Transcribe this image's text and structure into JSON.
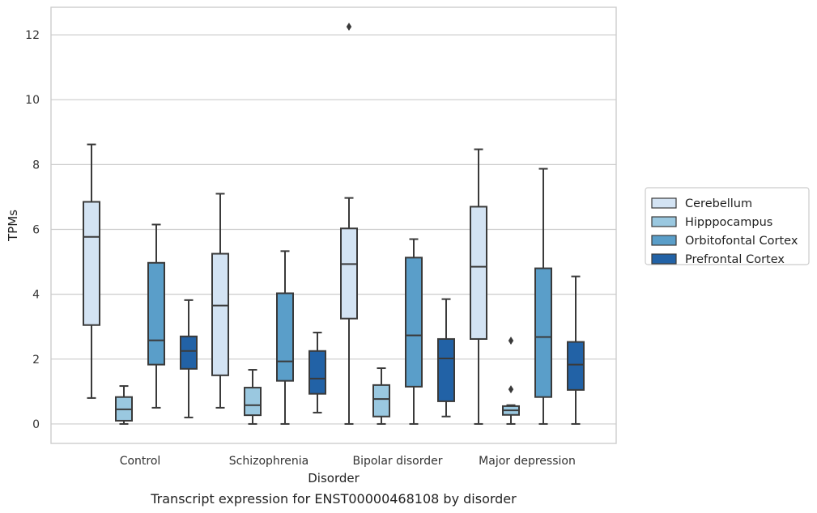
{
  "chart_data": {
    "type": "boxplot",
    "caption": "Transcript expression for ENST00000468108 by disorder",
    "xlabel": "Disorder",
    "ylabel": "TPMs",
    "ylim": [
      -0.6,
      12.85
    ],
    "yticks": [
      0,
      2,
      4,
      6,
      8,
      10,
      12
    ],
    "grid": "horizontal",
    "legend_position": "right",
    "categories": [
      "Control",
      "Schizophrenia",
      "Bipolar disorder",
      "Major depression"
    ],
    "series": [
      {
        "name": "Cerebellum",
        "color": "#d3e3f3",
        "boxes": [
          {
            "whislo": 0.8,
            "q1": 3.05,
            "med": 5.77,
            "q3": 6.85,
            "whishi": 8.62,
            "fliers": []
          },
          {
            "whislo": 0.5,
            "q1": 1.5,
            "med": 3.65,
            "q3": 5.25,
            "whishi": 7.1,
            "fliers": []
          },
          {
            "whislo": 0.0,
            "q1": 3.25,
            "med": 4.93,
            "q3": 6.03,
            "whishi": 6.97,
            "fliers": [
              12.25
            ]
          },
          {
            "whislo": 0.0,
            "q1": 2.62,
            "med": 4.85,
            "q3": 6.7,
            "whishi": 8.47,
            "fliers": []
          }
        ]
      },
      {
        "name": "Hipppocampus",
        "color": "#9ac8e0",
        "boxes": [
          {
            "whislo": 0.0,
            "q1": 0.1,
            "med": 0.45,
            "q3": 0.83,
            "whishi": 1.17,
            "fliers": []
          },
          {
            "whislo": 0.0,
            "q1": 0.27,
            "med": 0.58,
            "q3": 1.12,
            "whishi": 1.67,
            "fliers": []
          },
          {
            "whislo": 0.0,
            "q1": 0.23,
            "med": 0.77,
            "q3": 1.2,
            "whishi": 1.72,
            "fliers": []
          },
          {
            "whislo": 0.0,
            "q1": 0.28,
            "med": 0.42,
            "q3": 0.55,
            "whishi": 0.58,
            "fliers": [
              2.57,
              1.07
            ]
          }
        ]
      },
      {
        "name": "Orbitofontal Cortex",
        "color": "#5a9ec9",
        "boxes": [
          {
            "whislo": 0.5,
            "q1": 1.83,
            "med": 2.58,
            "q3": 4.97,
            "whishi": 6.15,
            "fliers": []
          },
          {
            "whislo": 0.0,
            "q1": 1.33,
            "med": 1.93,
            "q3": 4.03,
            "whishi": 5.33,
            "fliers": []
          },
          {
            "whislo": 0.0,
            "q1": 1.15,
            "med": 2.73,
            "q3": 5.13,
            "whishi": 5.7,
            "fliers": []
          },
          {
            "whislo": 0.0,
            "q1": 0.83,
            "med": 2.68,
            "q3": 4.8,
            "whishi": 7.87,
            "fliers": []
          }
        ]
      },
      {
        "name": "Prefrontal Cortex",
        "color": "#2262a6",
        "boxes": [
          {
            "whislo": 0.2,
            "q1": 1.7,
            "med": 2.25,
            "q3": 2.7,
            "whishi": 3.82,
            "fliers": []
          },
          {
            "whislo": 0.35,
            "q1": 0.93,
            "med": 1.4,
            "q3": 2.25,
            "whishi": 2.82,
            "fliers": []
          },
          {
            "whislo": 0.23,
            "q1": 0.7,
            "med": 2.02,
            "q3": 2.62,
            "whishi": 3.85,
            "fliers": []
          },
          {
            "whislo": 0.0,
            "q1": 1.05,
            "med": 1.83,
            "q3": 2.53,
            "whishi": 4.55,
            "fliers": []
          }
        ]
      }
    ]
  }
}
